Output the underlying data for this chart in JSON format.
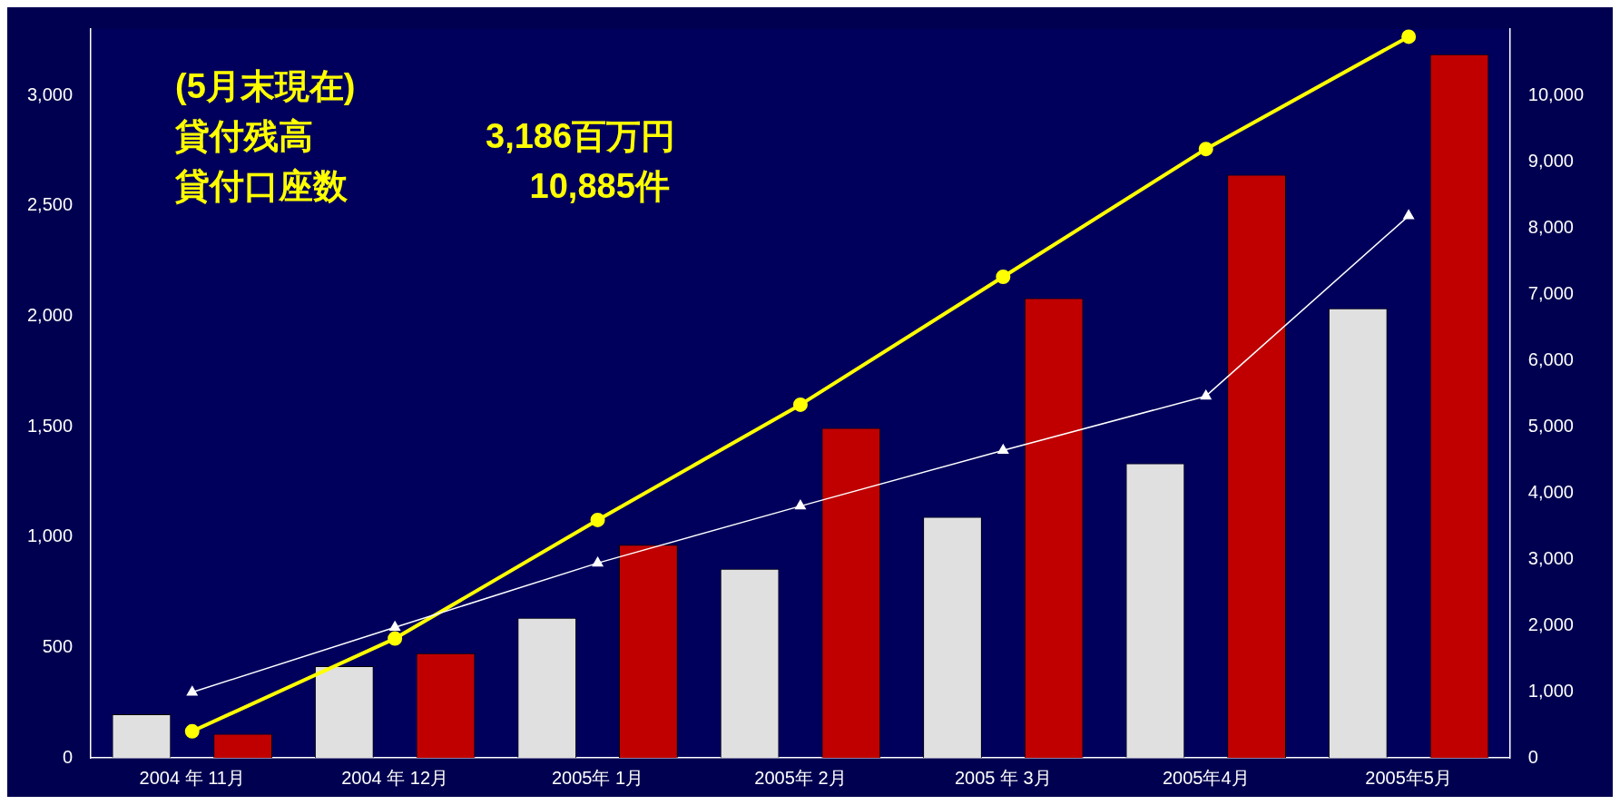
{
  "chart_data": {
    "type": "bar",
    "categories": [
      "2004 年 11月",
      "2004 年 12月",
      "2005年 1月",
      "2005年 2月",
      "2005 年 3月",
      "2005年4月",
      "2005年5月"
    ],
    "series": [
      {
        "color": "#e0e0e0",
        "values": [
          197,
          415,
          634,
          856,
          1091,
          1334,
          2035
        ]
      },
      {
        "color": "#c00000",
        "values": [
          109,
          474,
          965,
          1494,
          2081,
          2640,
          3186
        ]
      },
      {
        "type": "line",
        "axis": "y2",
        "color": "#ffffff",
        "marker": "triangle",
        "values": [
          990,
          1970,
          2940,
          3800,
          4640,
          5460,
          8180
        ]
      },
      {
        "type": "line",
        "axis": "y2",
        "color": "#ffff00",
        "marker": "circle",
        "values": [
          400,
          1800,
          3590,
          5330,
          7260,
          9190,
          10885
        ]
      }
    ],
    "ylim": [
      0,
      3300
    ],
    "yticks": [
      0,
      500,
      {
        "value": 1000,
        "label": "1,000"
      },
      {
        "value": 1500,
        "label": "1,500"
      },
      {
        "value": 2000,
        "label": "2,000"
      },
      {
        "value": 2500,
        "label": "2,500"
      },
      {
        "value": 3000,
        "label": "3,000"
      }
    ],
    "y2lim": [
      0,
      11000
    ],
    "y2ticks": [
      0,
      {
        "value": 1000,
        "label": "1,000"
      },
      {
        "value": 2000,
        "label": "2,000"
      },
      {
        "value": 3000,
        "label": "3,000"
      },
      {
        "value": 4000,
        "label": "4,000"
      },
      {
        "value": 5000,
        "label": "5,000"
      },
      {
        "value": 6000,
        "label": "6,000"
      },
      {
        "value": 7000,
        "label": "7,000"
      },
      {
        "value": 8000,
        "label": "8,000"
      },
      {
        "value": 9000,
        "label": "9,000"
      },
      {
        "value": 10000,
        "label": "10,000"
      }
    ],
    "annotations": [
      "(5月末現在)",
      "貸付残高　　　　　3,186百万円",
      "貸付口座数　　　　　 10,885件"
    ],
    "grid": false,
    "legend": false
  }
}
